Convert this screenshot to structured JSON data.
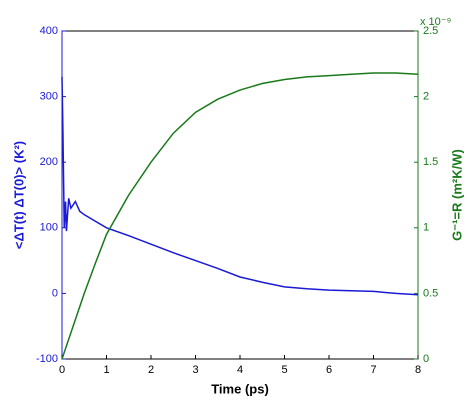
{
  "chart_data": {
    "type": "line",
    "xlabel": "Time (ps)",
    "ylabel": "<ΔT(t) ΔT(0)>  (K²)",
    "y2label": "G⁻¹=R (m²K/W)",
    "y2_scale_label": "x 10⁻⁹",
    "x": [
      0,
      0.02,
      0.05,
      0.08,
      0.1,
      0.15,
      0.2,
      0.3,
      0.4,
      0.5,
      0.75,
      1,
      1.5,
      2,
      2.5,
      3,
      3.5,
      4,
      4.5,
      5,
      5.5,
      6,
      6.5,
      7,
      7.5,
      8
    ],
    "series": [
      {
        "name": "<ΔT(t) ΔT(0)>",
        "color": "#1a1ad6",
        "axis": "y",
        "values": [
          330,
          250,
          100,
          140,
          95,
          145,
          130,
          140,
          125,
          120,
          110,
          100,
          88,
          75,
          62,
          50,
          38,
          25,
          17,
          10,
          7,
          5,
          4,
          3,
          0,
          -2
        ]
      },
      {
        "name": "G⁻¹=R",
        "color": "#1a7a1a",
        "axis": "y2",
        "values": [
          0,
          0.02,
          0.05,
          0.08,
          0.1,
          0.15,
          0.2,
          0.3,
          0.4,
          0.5,
          0.73,
          0.95,
          1.25,
          1.5,
          1.72,
          1.88,
          1.98,
          2.05,
          2.1,
          2.13,
          2.15,
          2.16,
          2.17,
          2.18,
          2.18,
          2.17
        ]
      }
    ],
    "xlim": [
      0,
      8
    ],
    "xticks": [
      0,
      1,
      2,
      3,
      4,
      5,
      6,
      7,
      8
    ],
    "ylim": [
      -100,
      400
    ],
    "yticks": [
      -100,
      0,
      100,
      200,
      300,
      400
    ],
    "y2lim": [
      0,
      2.5
    ],
    "y2ticks": [
      0,
      0.5,
      1,
      1.5,
      2,
      2.5
    ],
    "grid": false
  }
}
